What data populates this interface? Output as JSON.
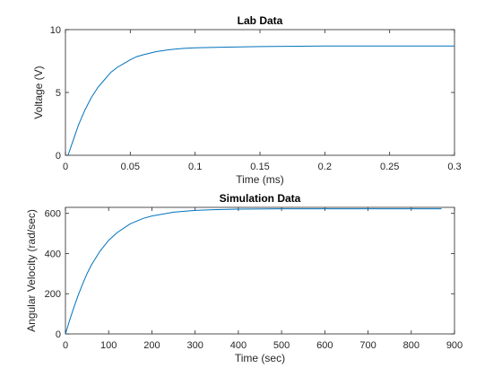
{
  "chart_data": [
    {
      "type": "line",
      "title": "Lab Data",
      "xlabel": "Time (ms)",
      "ylabel": "Voltage (V)",
      "xlim": [
        0,
        0.3
      ],
      "ylim": [
        0,
        10
      ],
      "xticks": [
        0,
        0.05,
        0.1,
        0.15,
        0.2,
        0.25,
        0.3
      ],
      "xtick_labels": [
        "0",
        "0.05",
        "0.1",
        "0.15",
        "0.2",
        "0.25",
        "0.3"
      ],
      "yticks": [
        0,
        5,
        10
      ],
      "ytick_labels": [
        "0",
        "5",
        "10"
      ],
      "grid": false,
      "legend": "none",
      "color": "#0072BD",
      "series": [
        {
          "x": [
            0.002,
            0.005,
            0.01,
            0.015,
            0.02,
            0.025,
            0.03,
            0.035,
            0.04,
            0.045,
            0.05,
            0.055,
            0.06,
            0.07,
            0.08,
            0.09,
            0.1,
            0.12,
            0.15,
            0.2,
            0.25,
            0.3
          ],
          "y": [
            0,
            0.9,
            2.4,
            3.6,
            4.6,
            5.4,
            6.0,
            6.6,
            7.0,
            7.3,
            7.6,
            7.85,
            8.0,
            8.25,
            8.4,
            8.5,
            8.55,
            8.6,
            8.65,
            8.7,
            8.7,
            8.7
          ]
        }
      ]
    },
    {
      "type": "line",
      "title": "Simulation Data",
      "xlabel": "Time (sec)",
      "ylabel": "Angular Velocity (rad/sec)",
      "xlim": [
        0,
        900
      ],
      "ylim": [
        0,
        630
      ],
      "xticks": [
        0,
        100,
        200,
        300,
        400,
        500,
        600,
        700,
        800,
        900
      ],
      "xtick_labels": [
        "0",
        "100",
        "200",
        "300",
        "400",
        "500",
        "600",
        "700",
        "800",
        "900"
      ],
      "yticks": [
        0,
        200,
        400,
        600
      ],
      "ytick_labels": [
        "0",
        "200",
        "400",
        "600"
      ],
      "grid": false,
      "legend": "none",
      "color": "#0072BD",
      "series": [
        {
          "x": [
            0,
            10,
            20,
            30,
            40,
            50,
            60,
            80,
            100,
            120,
            150,
            180,
            200,
            250,
            300,
            350,
            400,
            500,
            600,
            700,
            800,
            870
          ],
          "y": [
            0,
            70,
            135,
            195,
            250,
            300,
            343,
            412,
            466,
            505,
            548,
            575,
            587,
            606,
            615,
            619,
            621,
            623,
            623,
            623,
            623,
            623
          ]
        }
      ]
    }
  ]
}
